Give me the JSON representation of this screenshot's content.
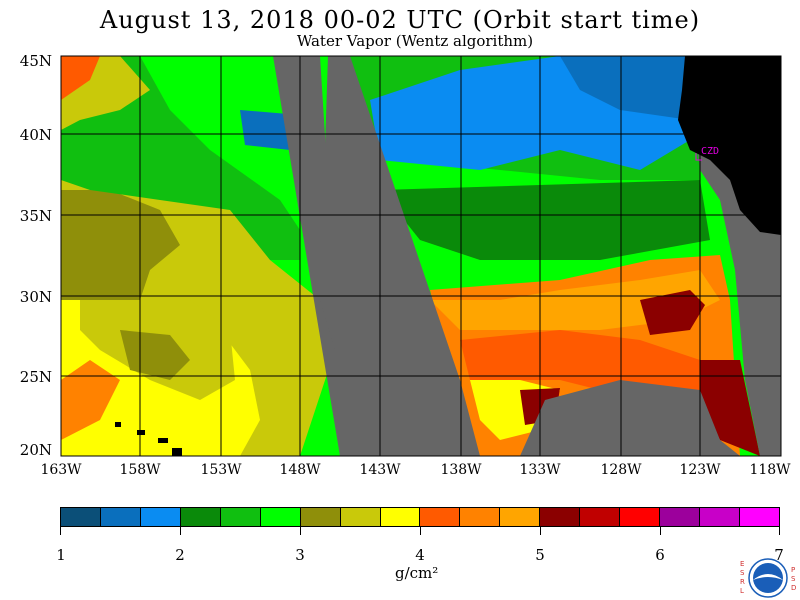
{
  "header": {
    "title": "August 13, 2018   00-02 UTC   (Orbit start time)",
    "subtitle": "Water Vapor (Wentz algorithm)"
  },
  "axes": {
    "lat_labels": [
      "45N",
      "40N",
      "35N",
      "30N",
      "25N",
      "20N"
    ],
    "lon_labels": [
      "163W",
      "158W",
      "153W",
      "148W",
      "143W",
      "138W",
      "133W",
      "128W",
      "123W",
      "118W"
    ]
  },
  "map_labels": {
    "city": "CZD"
  },
  "colorbar": {
    "ticks": [
      "1",
      "2",
      "3",
      "4",
      "5",
      "6",
      "7"
    ],
    "units": "g/cm²",
    "colors": [
      "#0b4f78",
      "#0a6fbd",
      "#0a8cf2",
      "#0a8a0a",
      "#10bf10",
      "#00ff00",
      "#8f8f0a",
      "#c9c90a",
      "#ffff00",
      "#ff5a00",
      "#ff8200",
      "#ffa500",
      "#8b0000",
      "#c00000",
      "#ff0000",
      "#9c009c",
      "#c800c8",
      "#ff00ff"
    ]
  },
  "logo": {
    "left_letters": "ESRL",
    "right_letters": "PSD"
  },
  "colors": {
    "land": "#000000",
    "no_data": "#666666",
    "grid": "#000000"
  }
}
